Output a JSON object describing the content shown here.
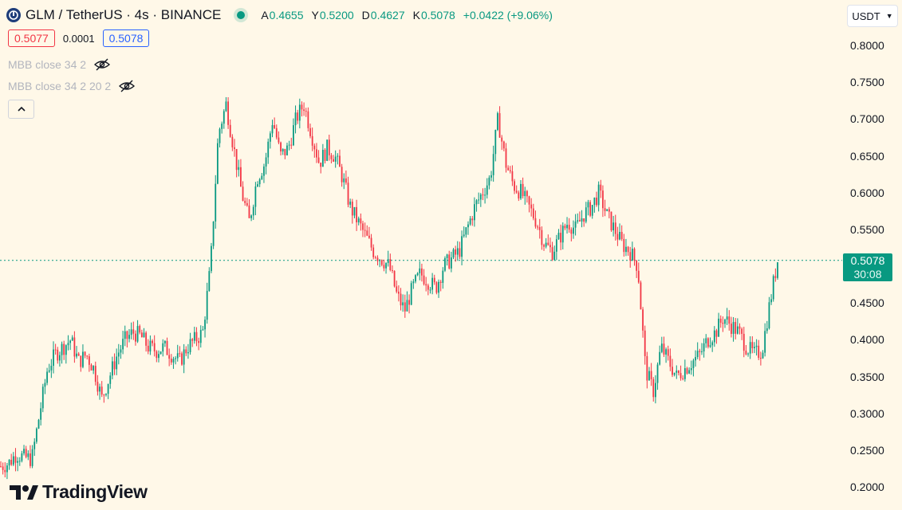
{
  "header": {
    "title": "GLM / TetherUS · 4s · BINANCE",
    "ohlc": [
      {
        "label": "A",
        "value": "0.4655"
      },
      {
        "label": "Y",
        "value": "0.5200"
      },
      {
        "label": "D",
        "value": "0.4627"
      },
      {
        "label": "K",
        "value": "0.5078"
      }
    ],
    "change": "+0.0422 (+9.06%)"
  },
  "quote": {
    "sell": "0.5077",
    "spread": "0.0001",
    "buy": "0.5078"
  },
  "indicators": [
    {
      "label": "MBB close 34 2"
    },
    {
      "label": "MBB close 34 2 20 2"
    }
  ],
  "currency": {
    "label": "USDT"
  },
  "last_price": {
    "price": "0.5078",
    "countdown": "30:08",
    "color": "#089981"
  },
  "logo": {
    "text": "TradingView"
  },
  "colors": {
    "up": "#089981",
    "down": "#f23645",
    "background": "#fff8e8"
  },
  "chart_data": {
    "type": "candlestick",
    "symbol": "GLM / TetherUS",
    "interval": "4s",
    "exchange": "BINANCE",
    "y_ticks": [
      "0.8000",
      "0.7500",
      "0.7000",
      "0.6500",
      "0.6000",
      "0.5500",
      "0.5000",
      "0.4500",
      "0.4000",
      "0.3500",
      "0.3000",
      "0.2500",
      "0.2000"
    ],
    "ylim": [
      0.19,
      0.81
    ],
    "last_close": 0.5078,
    "close_path": [
      0.228,
      0.232,
      0.245,
      0.24,
      0.238,
      0.3,
      0.36,
      0.38,
      0.39,
      0.4,
      0.37,
      0.38,
      0.36,
      0.32,
      0.35,
      0.38,
      0.4,
      0.41,
      0.405,
      0.39,
      0.385,
      0.39,
      0.38,
      0.37,
      0.39,
      0.4,
      0.41,
      0.5,
      0.68,
      0.72,
      0.66,
      0.6,
      0.56,
      0.62,
      0.64,
      0.7,
      0.65,
      0.66,
      0.7,
      0.72,
      0.68,
      0.64,
      0.66,
      0.65,
      0.62,
      0.58,
      0.56,
      0.54,
      0.52,
      0.51,
      0.5,
      0.46,
      0.44,
      0.47,
      0.49,
      0.48,
      0.47,
      0.5,
      0.51,
      0.52,
      0.55,
      0.58,
      0.6,
      0.62,
      0.7,
      0.64,
      0.61,
      0.6,
      0.58,
      0.56,
      0.53,
      0.52,
      0.54,
      0.56,
      0.55,
      0.57,
      0.58,
      0.6,
      0.57,
      0.55,
      0.53,
      0.52,
      0.5,
      0.36,
      0.33,
      0.39,
      0.37,
      0.35,
      0.36,
      0.37,
      0.38,
      0.4,
      0.41,
      0.43,
      0.42,
      0.41,
      0.39,
      0.38,
      0.385,
      0.45,
      0.508
    ],
    "volatility": 0.012
  }
}
